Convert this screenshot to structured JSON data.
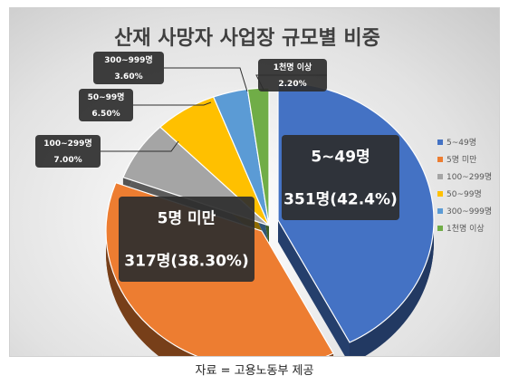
{
  "chart_data": {
    "type": "pie",
    "title": "산재 사망자 사업장 규모별 비중",
    "slices": [
      {
        "label": "5~49명",
        "value": 42.4,
        "value_text": "351명(42.4%)",
        "color": "#4472c4"
      },
      {
        "label": "5명 미만",
        "value": 38.3,
        "value_text": "317명(38.30%)",
        "color": "#ed7d31"
      },
      {
        "label": "100~299명",
        "value": 7.0,
        "value_text": "7.00%",
        "color": "#a5a5a5"
      },
      {
        "label": "50~99명",
        "value": 6.5,
        "value_text": "6.50%",
        "color": "#ffc000"
      },
      {
        "label": "300~999명",
        "value": 3.6,
        "value_text": "3.60%",
        "color": "#5b9bd5"
      },
      {
        "label": "1천명 이상",
        "value": 2.2,
        "value_text": "2.20%",
        "color": "#70ad47"
      }
    ],
    "legend_position": "right"
  },
  "source": "자료 = 고용노동부 제공"
}
